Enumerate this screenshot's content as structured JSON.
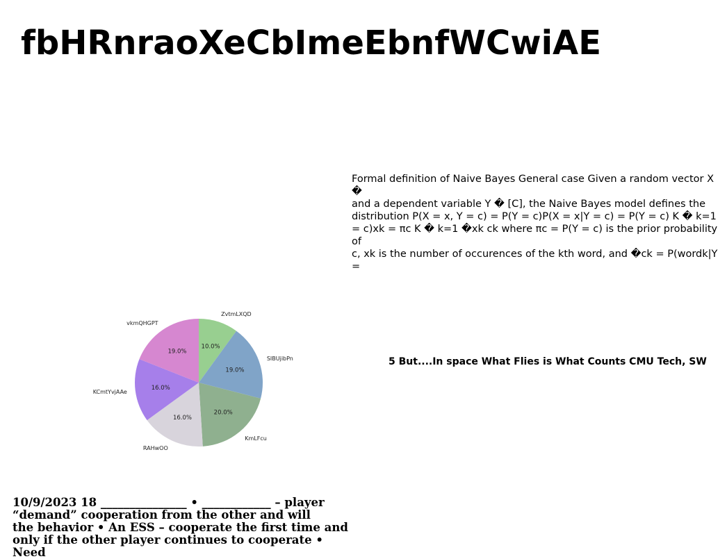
{
  "title": "fbHRnraoXeCbImeEbnfWCwiAE",
  "paragraph_right": "Formal definition of Naive Bayes General case Given a random vector X �\nand a dependent variable Y � [C], the Naive Bayes model defines the\ndistribution P(X = x, Y = c) = P(Y = c)P(X = x|Y = c) = P(Y = c) K � k=1\n= c)xk = πc K � k=1 �xk ck where πc = P(Y = c) is the prior probability of\nc, xk is the number of occurences of the kth word, and �ck = P(wordk|Y =",
  "middle_line": "5 But....In space What Flies is What Counts CMU Tech, SW",
  "bottom_block": "10/9/2023 18 _______________ • ____________ – player\n“demand” cooperation from the other  and will\nthe behavior • An ESS – cooperate the first time and\nonly if the other player continues to cooperate • Need",
  "chart_data": {
    "type": "pie",
    "title": "",
    "slices": [
      {
        "label": "ZvtmLXQD",
        "value": 10.0,
        "pct_label": "10.0%",
        "color": "#98cf90"
      },
      {
        "label": "SIBUjibPn",
        "value": 19.0,
        "pct_label": "19.0%",
        "color": "#80a4c8"
      },
      {
        "label": "KmLFcu",
        "value": 20.0,
        "pct_label": "20.0%",
        "color": "#8fb08f"
      },
      {
        "label": "RAHwOO",
        "value": 16.0,
        "pct_label": "16.0%",
        "color": "#d8d4dc"
      },
      {
        "label": "KCmtYvjAAe",
        "value": 16.0,
        "pct_label": "16.0%",
        "color": "#a67fea"
      },
      {
        "label": "vkmQHGPT",
        "value": 19.0,
        "pct_label": "19.0%",
        "color": "#d687d0"
      }
    ],
    "start_angle_deg": 90,
    "direction": "clockwise",
    "legend": "none"
  }
}
